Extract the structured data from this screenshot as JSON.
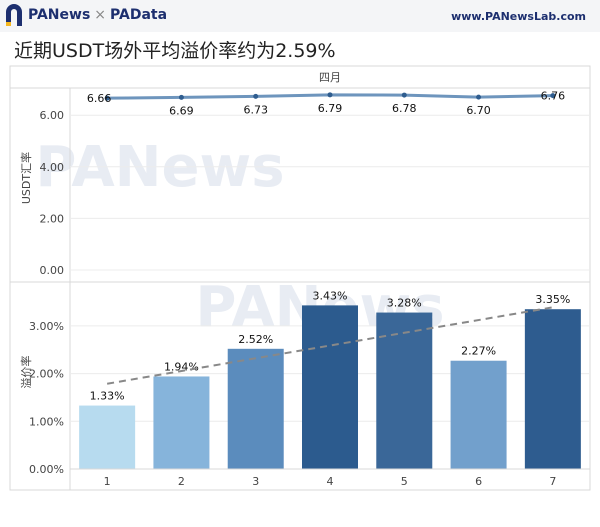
{
  "header": {
    "brand_left": "PANews",
    "brand_sep": "×",
    "brand_right": "PAData",
    "site": "www.PANewsLab.com",
    "brand_color": "#1d2f6f"
  },
  "title": "近期USDT场外平均溢价率约为2.59%",
  "watermark": "PANews",
  "chart_data": [
    {
      "type": "line",
      "panel_title": "四月",
      "ylabel": "USDT汇率",
      "ylim": [
        0,
        7
      ],
      "yticks": [
        "0.00",
        "2.00",
        "4.00",
        "6.00"
      ],
      "ytick_values": [
        0,
        2,
        4,
        6
      ],
      "x": [
        1,
        2,
        3,
        4,
        5,
        6,
        7
      ],
      "values": [
        6.66,
        6.69,
        6.73,
        6.79,
        6.78,
        6.7,
        6.76
      ],
      "labels": [
        "6.66",
        "6.69",
        "6.73",
        "6.79",
        "6.78",
        "6.70",
        "6.76"
      ],
      "color": "#6e95bd"
    },
    {
      "type": "bar",
      "ylabel": "溢价率",
      "ylim": [
        0,
        0.0375
      ],
      "yticks": [
        "0.00%",
        "1.00%",
        "2.00%",
        "3.00%"
      ],
      "ytick_values": [
        0,
        0.01,
        0.02,
        0.03
      ],
      "categories": [
        "1",
        "2",
        "3",
        "4",
        "5",
        "6",
        "7"
      ],
      "values": [
        0.0133,
        0.0194,
        0.0252,
        0.0343,
        0.0328,
        0.0227,
        0.0335
      ],
      "labels": [
        "1.33%",
        "1.94%",
        "2.52%",
        "3.43%",
        "3.28%",
        "2.27%",
        "3.35%"
      ],
      "colors": [
        "#b7dbef",
        "#86b4db",
        "#5b8cbd",
        "#2c5b8e",
        "#3a6798",
        "#72a0cc",
        "#2e5c8f"
      ],
      "trendline": true,
      "trend_color": "#888888"
    }
  ]
}
